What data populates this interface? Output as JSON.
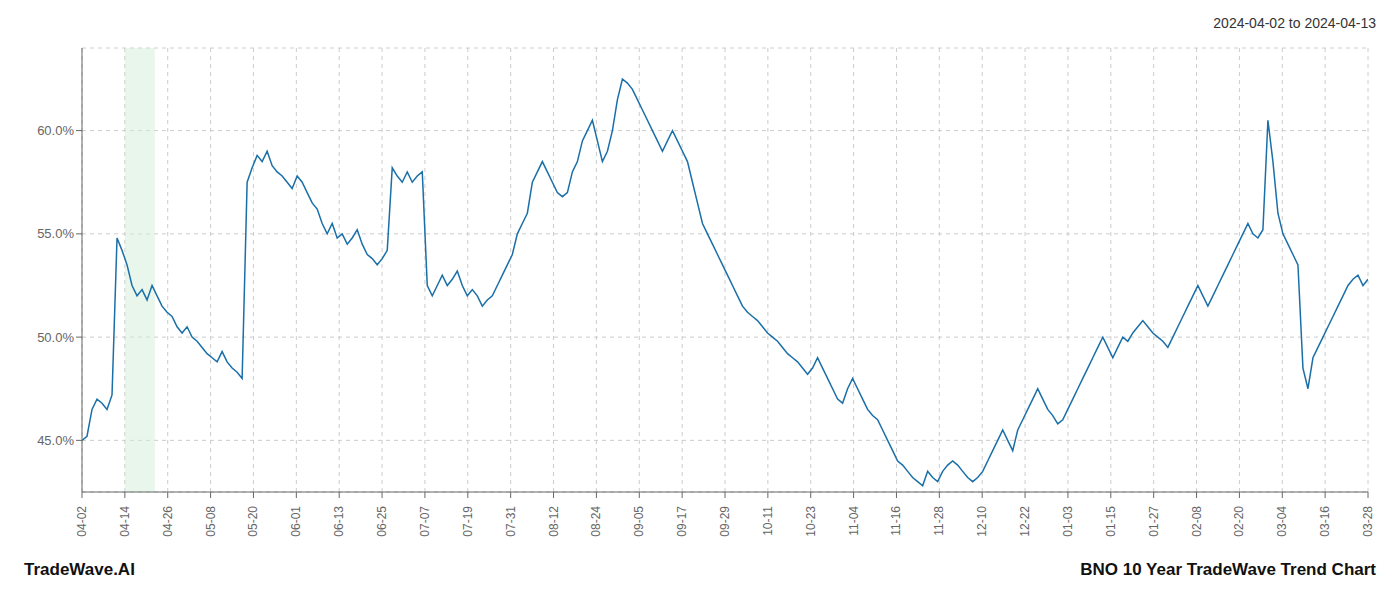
{
  "chart_data": {
    "type": "line",
    "title": "BNO 10 Year TradeWave Trend Chart",
    "subtitle": "2024-04-02 to 2024-04-13",
    "annotations": [
      "TradeWave.AI"
    ],
    "color": "#1a6fa8",
    "grid": true,
    "xlim": [
      0,
      30
    ],
    "xticks": [
      {
        "value": 0,
        "label": "04-02"
      },
      {
        "value": 1,
        "label": "04-14"
      },
      {
        "value": 2,
        "label": "04-26"
      },
      {
        "value": 3,
        "label": "05-08"
      },
      {
        "value": 4,
        "label": "05-20"
      },
      {
        "value": 5,
        "label": "06-01"
      },
      {
        "value": 6,
        "label": "06-13"
      },
      {
        "value": 7,
        "label": "06-25"
      },
      {
        "value": 8,
        "label": "07-07"
      },
      {
        "value": 9,
        "label": "07-19"
      },
      {
        "value": 10,
        "label": "07-31"
      },
      {
        "value": 11,
        "label": "08-12"
      },
      {
        "value": 12,
        "label": "08-24"
      },
      {
        "value": 13,
        "label": "09-05"
      },
      {
        "value": 14,
        "label": "09-17"
      },
      {
        "value": 15,
        "label": "09-29"
      },
      {
        "value": 16,
        "label": "10-11"
      },
      {
        "value": 17,
        "label": "10-23"
      },
      {
        "value": 18,
        "label": "11-04"
      },
      {
        "value": 19,
        "label": "11-16"
      },
      {
        "value": 20,
        "label": "11-28"
      },
      {
        "value": 21,
        "label": "12-10"
      },
      {
        "value": 22,
        "label": "12-22"
      },
      {
        "value": 23,
        "label": "01-03"
      },
      {
        "value": 24,
        "label": "01-15"
      },
      {
        "value": 25,
        "label": "01-27"
      },
      {
        "value": 26,
        "label": "02-08"
      },
      {
        "value": 27,
        "label": "02-20"
      },
      {
        "value": 28,
        "label": "03-04"
      },
      {
        "value": 29,
        "label": "03-16"
      },
      {
        "value": 30,
        "label": "03-28"
      }
    ],
    "ylim": [
      42.5,
      64.0
    ],
    "yticks": [
      {
        "value": 45.0,
        "label": "45.0%"
      },
      {
        "value": 50.0,
        "label": "50.0%"
      },
      {
        "value": 55.0,
        "label": "55.0%"
      },
      {
        "value": 60.0,
        "label": "60.0%"
      }
    ],
    "shaded_region": {
      "x": [
        1.0,
        1.7
      ],
      "color": "#d4edda"
    },
    "values": [
      45.0,
      45.2,
      46.5,
      47.0,
      46.8,
      46.5,
      47.2,
      54.8,
      54.2,
      53.5,
      52.5,
      52.0,
      52.3,
      51.8,
      52.5,
      52.0,
      51.5,
      51.2,
      51.0,
      50.5,
      50.2,
      50.5,
      50.0,
      49.8,
      49.5,
      49.2,
      49.0,
      48.8,
      49.3,
      48.8,
      48.5,
      48.3,
      48.0,
      57.5,
      58.2,
      58.8,
      58.5,
      59.0,
      58.3,
      58.0,
      57.8,
      57.5,
      57.2,
      57.8,
      57.5,
      57.0,
      56.5,
      56.2,
      55.5,
      55.0,
      55.5,
      54.8,
      55.0,
      54.5,
      54.8,
      55.2,
      54.5,
      54.0,
      53.8,
      53.5,
      53.8,
      54.2,
      58.2,
      57.8,
      57.5,
      58.0,
      57.5,
      57.8,
      58.0,
      52.5,
      52.0,
      52.5,
      53.0,
      52.5,
      52.8,
      53.2,
      52.5,
      52.0,
      52.3,
      52.0,
      51.5,
      51.8,
      52.0,
      52.5,
      53.0,
      53.5,
      54.0,
      55.0,
      55.5,
      56.0,
      57.5,
      58.0,
      58.5,
      58.0,
      57.5,
      57.0,
      56.8,
      57.0,
      58.0,
      58.5,
      59.5,
      60.0,
      60.5,
      59.5,
      58.5,
      59.0,
      60.0,
      61.5,
      62.5,
      62.3,
      62.0,
      61.5,
      61.0,
      60.5,
      60.0,
      59.5,
      59.0,
      59.5,
      60.0,
      59.5,
      59.0,
      58.5,
      57.5,
      56.5,
      55.5,
      55.0,
      54.5,
      54.0,
      53.5,
      53.0,
      52.5,
      52.0,
      51.5,
      51.2,
      51.0,
      50.8,
      50.5,
      50.2,
      50.0,
      49.8,
      49.5,
      49.2,
      49.0,
      48.8,
      48.5,
      48.2,
      48.5,
      49.0,
      48.5,
      48.0,
      47.5,
      47.0,
      46.8,
      47.5,
      48.0,
      47.5,
      47.0,
      46.5,
      46.2,
      46.0,
      45.5,
      45.0,
      44.5,
      44.0,
      43.8,
      43.5,
      43.2,
      43.0,
      42.8,
      43.5,
      43.2,
      43.0,
      43.5,
      43.8,
      44.0,
      43.8,
      43.5,
      43.2,
      43.0,
      43.2,
      43.5,
      44.0,
      44.5,
      45.0,
      45.5,
      45.0,
      44.5,
      45.5,
      46.0,
      46.5,
      47.0,
      47.5,
      47.0,
      46.5,
      46.2,
      45.8,
      46.0,
      46.5,
      47.0,
      47.5,
      48.0,
      48.5,
      49.0,
      49.5,
      50.0,
      49.5,
      49.0,
      49.5,
      50.0,
      49.8,
      50.2,
      50.5,
      50.8,
      50.5,
      50.2,
      50.0,
      49.8,
      49.5,
      50.0,
      50.5,
      51.0,
      51.5,
      52.0,
      52.5,
      52.0,
      51.5,
      52.0,
      52.5,
      53.0,
      53.5,
      54.0,
      54.5,
      55.0,
      55.5,
      55.0,
      54.8,
      55.2,
      60.5,
      58.5,
      56.0,
      55.0,
      54.5,
      54.0,
      53.5,
      48.5,
      47.5,
      49.0,
      49.5,
      50.0,
      50.5,
      51.0,
      51.5,
      52.0,
      52.5,
      52.8,
      53.0,
      52.5,
      52.8
    ]
  }
}
